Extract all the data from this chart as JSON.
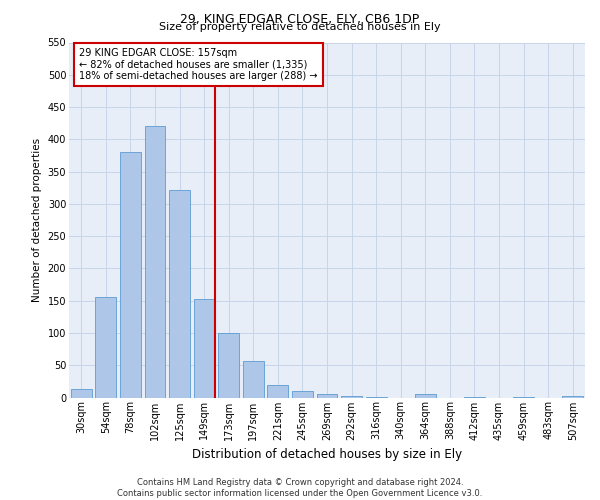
{
  "title1": "29, KING EDGAR CLOSE, ELY, CB6 1DP",
  "title2": "Size of property relative to detached houses in Ely",
  "xlabel": "Distribution of detached houses by size in Ely",
  "ylabel": "Number of detached properties",
  "footnote": "Contains HM Land Registry data © Crown copyright and database right 2024.\nContains public sector information licensed under the Open Government Licence v3.0.",
  "bar_labels": [
    "30sqm",
    "54sqm",
    "78sqm",
    "102sqm",
    "125sqm",
    "149sqm",
    "173sqm",
    "197sqm",
    "221sqm",
    "245sqm",
    "269sqm",
    "292sqm",
    "316sqm",
    "340sqm",
    "364sqm",
    "388sqm",
    "412sqm",
    "435sqm",
    "459sqm",
    "483sqm",
    "507sqm"
  ],
  "bar_values": [
    13,
    155,
    381,
    420,
    322,
    152,
    100,
    56,
    20,
    10,
    5,
    3,
    1,
    0,
    5,
    0,
    1,
    0,
    1,
    0,
    3
  ],
  "bar_color": "#aec6e8",
  "bar_edge_color": "#5b9bd5",
  "vline_bar_index": 5,
  "vline_color": "#cc0000",
  "annotation_text": "29 KING EDGAR CLOSE: 157sqm\n← 82% of detached houses are smaller (1,335)\n18% of semi-detached houses are larger (288) →",
  "annotation_box_color": "#cc0000",
  "ylim": [
    0,
    550
  ],
  "yticks": [
    0,
    50,
    100,
    150,
    200,
    250,
    300,
    350,
    400,
    450,
    500,
    550
  ],
  "grid_color": "#c8d4e8",
  "background_color": "#e8eef8",
  "title1_fontsize": 9,
  "title2_fontsize": 8,
  "ylabel_fontsize": 7.5,
  "xlabel_fontsize": 8.5,
  "tick_fontsize": 7,
  "annot_fontsize": 7,
  "footnote_fontsize": 6
}
